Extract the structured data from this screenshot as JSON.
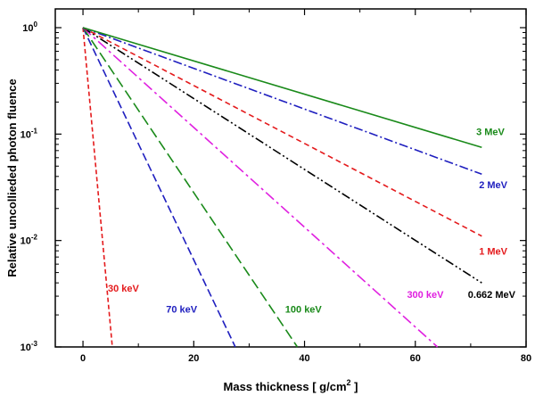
{
  "chart_data": {
    "type": "line",
    "xlabel": "Mass thickness  [ g/cm",
    "xlabel_sup": "2",
    "xlabel_end": " ]",
    "ylabel": "Relative uncollieded photon fluence",
    "xlim": [
      -5,
      80
    ],
    "ylim": [
      0.001,
      1.5
    ],
    "y_scale": "log",
    "x_ticks": [
      0,
      20,
      40,
      60,
      80
    ],
    "x_tick_labels": [
      "0",
      "20",
      "40",
      "60",
      "80"
    ],
    "y_ticks": [
      1,
      0.1,
      0.01,
      0.001
    ],
    "y_tick_labels": [
      {
        "base": "10",
        "exp": "0"
      },
      {
        "base": "10",
        "exp": "-1"
      },
      {
        "base": "10",
        "exp": "-2"
      },
      {
        "base": "10",
        "exp": "-3"
      }
    ],
    "grid": false,
    "series": [
      {
        "name": "30 keV",
        "color": "#e41a1c",
        "dash": "5,3",
        "x": [
          0,
          5.3
        ],
        "y": [
          1,
          0.001
        ],
        "label_at": [
          4.5,
          0.0033
        ]
      },
      {
        "name": "70 keV",
        "color": "#1f1fbf",
        "dash": "9,4",
        "x": [
          0,
          27.5
        ],
        "y": [
          1,
          0.001
        ],
        "label_at": [
          15,
          0.0021
        ]
      },
      {
        "name": "100 keV",
        "color": "#1a8a1a",
        "dash": "12,5",
        "x": [
          0,
          38.7
        ],
        "y": [
          1,
          0.001
        ],
        "label_at": [
          36.5,
          0.0021
        ]
      },
      {
        "name": "300 keV",
        "color": "#e020e0",
        "dash": "12,4,3,4",
        "x": [
          0,
          64
        ],
        "y": [
          1,
          0.001
        ],
        "label_at": [
          58.5,
          0.0029
        ]
      },
      {
        "name": "0.662 MeV",
        "color": "#000000",
        "dash": "10,3,2,3,2,3",
        "x": [
          0,
          72
        ],
        "y": [
          1,
          0.004
        ],
        "label_at": [
          69.5,
          0.0029
        ]
      },
      {
        "name": "1 MeV",
        "color": "#e41a1c",
        "dash": "6,4",
        "x": [
          0,
          72
        ],
        "y": [
          1,
          0.011
        ],
        "label_at": [
          71.5,
          0.0074
        ]
      },
      {
        "name": "2 MeV",
        "color": "#1f1fbf",
        "dash": "10,3,2,3",
        "x": [
          0,
          72
        ],
        "y": [
          1,
          0.042
        ],
        "label_at": [
          71.5,
          0.031
        ]
      },
      {
        "name": "3 MeV",
        "color": "#1a8a1a",
        "dash": "",
        "x": [
          0,
          72
        ],
        "y": [
          1,
          0.075
        ],
        "label_at": [
          71,
          0.098
        ]
      }
    ]
  }
}
